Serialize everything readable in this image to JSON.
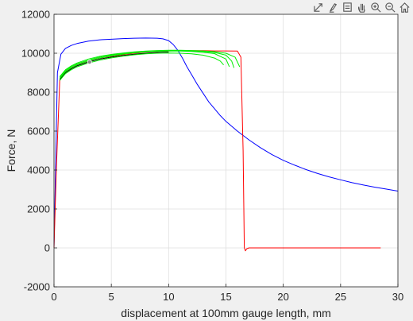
{
  "toolbar": {
    "buttons": [
      {
        "name": "export-icon"
      },
      {
        "name": "brush-icon"
      },
      {
        "name": "data-tips-icon"
      },
      {
        "name": "pan-icon"
      },
      {
        "name": "zoom-in-icon"
      },
      {
        "name": "zoom-out-icon"
      },
      {
        "name": "home-icon"
      }
    ]
  },
  "chart_data": {
    "type": "line",
    "xlabel": "displacement at 100mm gauge length, mm",
    "ylabel": "Force, N",
    "xlim": [
      0,
      30
    ],
    "ylim": [
      -2000,
      12000
    ],
    "xticks": [
      0,
      5,
      10,
      15,
      20,
      25,
      30
    ],
    "yticks": [
      -2000,
      0,
      2000,
      4000,
      6000,
      8000,
      10000,
      12000
    ],
    "grid": true,
    "colors": {
      "blue": "#0000ff",
      "red": "#ff0000",
      "green": "#00ee00",
      "black": "#000000",
      "marker": "#888888"
    },
    "series": [
      {
        "color": "#0000ff",
        "x": [
          0,
          0.3,
          0.6,
          1,
          1.5,
          2,
          3,
          4,
          5,
          6,
          7,
          8,
          9,
          9.5,
          10,
          10.4,
          10.8,
          11.2,
          11.6,
          12,
          12.5,
          13,
          13.5,
          14,
          14.5,
          15,
          15.5,
          16,
          17,
          18,
          19,
          20,
          21,
          22,
          23,
          24,
          25,
          26,
          27,
          28,
          29,
          30
        ],
        "y": [
          0,
          9000,
          9950,
          10250,
          10400,
          10500,
          10620,
          10690,
          10720,
          10750,
          10770,
          10780,
          10770,
          10740,
          10650,
          10450,
          10150,
          9750,
          9300,
          8900,
          8400,
          7950,
          7500,
          7150,
          6800,
          6500,
          6250,
          6000,
          5550,
          5150,
          4800,
          4500,
          4250,
          4020,
          3820,
          3650,
          3500,
          3350,
          3230,
          3120,
          3020,
          2920
        ]
      },
      {
        "color": "#ff0000",
        "x": [
          0,
          0.2,
          0.5,
          0.8,
          1,
          1.5,
          2,
          3,
          4,
          5,
          6,
          7,
          8,
          9,
          10,
          11,
          12,
          13,
          14,
          15,
          16,
          16.3,
          16.5,
          16.6,
          16.7,
          16.8,
          17,
          17.2,
          20,
          25,
          28.5
        ],
        "y": [
          0,
          4000,
          8600,
          8900,
          9050,
          9250,
          9400,
          9600,
          9750,
          9850,
          9930,
          10000,
          10060,
          10100,
          10120,
          10130,
          10130,
          10130,
          10120,
          10120,
          10110,
          9800,
          5000,
          0,
          -150,
          -50,
          0,
          0,
          0,
          0,
          0
        ]
      },
      {
        "color": "#000000",
        "x": [
          0.5,
          1,
          1.5,
          2,
          3,
          4,
          5,
          6,
          7,
          8,
          9,
          10
        ],
        "y": [
          8650,
          9000,
          9200,
          9350,
          9550,
          9700,
          9800,
          9880,
          9950,
          10000,
          10040,
          10060
        ]
      },
      {
        "color": "#00ee00",
        "x": [
          0.5,
          1,
          1.5,
          2,
          3,
          4,
          5,
          6,
          7,
          8,
          9,
          10,
          11,
          12,
          13,
          14,
          14.5,
          14.8
        ],
        "y": [
          8600,
          8950,
          9150,
          9300,
          9500,
          9650,
          9760,
          9850,
          9920,
          9970,
          10000,
          10010,
          10000,
          9970,
          9900,
          9750,
          9600,
          9400
        ]
      },
      {
        "color": "#00ee00",
        "x": [
          0.5,
          1,
          1.5,
          2,
          3,
          4,
          5,
          6,
          7,
          8,
          9,
          10,
          11,
          12,
          13,
          14,
          15,
          15.3
        ],
        "y": [
          8700,
          9050,
          9250,
          9400,
          9600,
          9750,
          9860,
          9950,
          10020,
          10070,
          10100,
          10110,
          10110,
          10090,
          10050,
          9980,
          9700,
          9300
        ]
      },
      {
        "color": "#00ee00",
        "x": [
          0.5,
          1,
          1.5,
          2,
          3,
          4,
          5,
          6,
          7,
          8,
          9,
          10,
          11,
          12,
          13,
          14,
          15,
          15.5,
          15.7
        ],
        "y": [
          8750,
          9100,
          9300,
          9450,
          9650,
          9800,
          9900,
          9980,
          10040,
          10090,
          10120,
          10130,
          10130,
          10120,
          10090,
          10040,
          9900,
          9600,
          9250
        ]
      },
      {
        "color": "#00ee00",
        "x": [
          0.5,
          1,
          1.5,
          2,
          3,
          4,
          5,
          6,
          7,
          8,
          9,
          10,
          11,
          12,
          13,
          14,
          15,
          15.8,
          16.2
        ],
        "y": [
          8800,
          9150,
          9350,
          9500,
          9700,
          9840,
          9940,
          10010,
          10070,
          10110,
          10140,
          10150,
          10150,
          10140,
          10120,
          10080,
          10000,
          9800,
          9300
        ]
      }
    ],
    "markers": [
      {
        "x": 3.1,
        "y": 9550,
        "color": "#888888"
      }
    ]
  }
}
